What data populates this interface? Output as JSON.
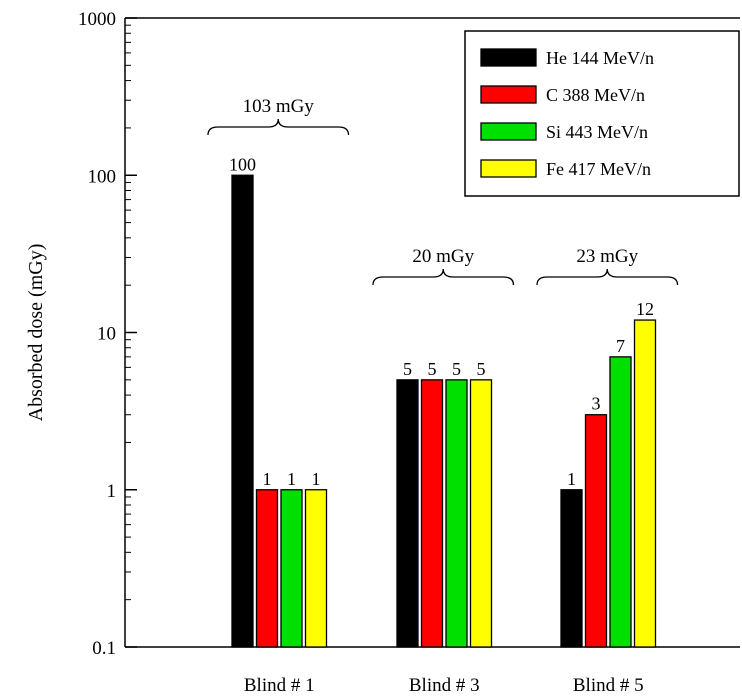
{
  "chart_data": {
    "type": "bar",
    "yscale": "log",
    "ylim": [
      0.1,
      1000
    ],
    "ylabel": "Absorbed dose (mGy)",
    "xlabel": "",
    "title": "",
    "y_ticks": [
      "0.1",
      "1",
      "10",
      "100",
      "1000"
    ],
    "grid": false,
    "legend_position": "top-right",
    "categories": [
      "Blind # 1",
      "Blind # 3",
      "Blind # 5"
    ],
    "series": [
      {
        "name": "He 144 MeV/n",
        "color": "#000000",
        "values": [
          100,
          5,
          1
        ],
        "labels": [
          "100",
          "5",
          "1"
        ]
      },
      {
        "name": "C   388 MeV/n",
        "color": "#ff0000",
        "values": [
          1,
          5,
          3
        ],
        "labels": [
          "1",
          "5",
          "3"
        ]
      },
      {
        "name": "Si  443 MeV/n",
        "color": "#00e000",
        "values": [
          1,
          5,
          7
        ],
        "labels": [
          "1",
          "5",
          "7"
        ]
      },
      {
        "name": "Fe  417 MeV/n",
        "color": "#ffff00",
        "values": [
          1,
          5,
          12
        ],
        "labels": [
          "1",
          "5",
          "12"
        ]
      }
    ],
    "group_totals": [
      "103 mGy",
      "20 mGy",
      "23 mGy"
    ]
  }
}
